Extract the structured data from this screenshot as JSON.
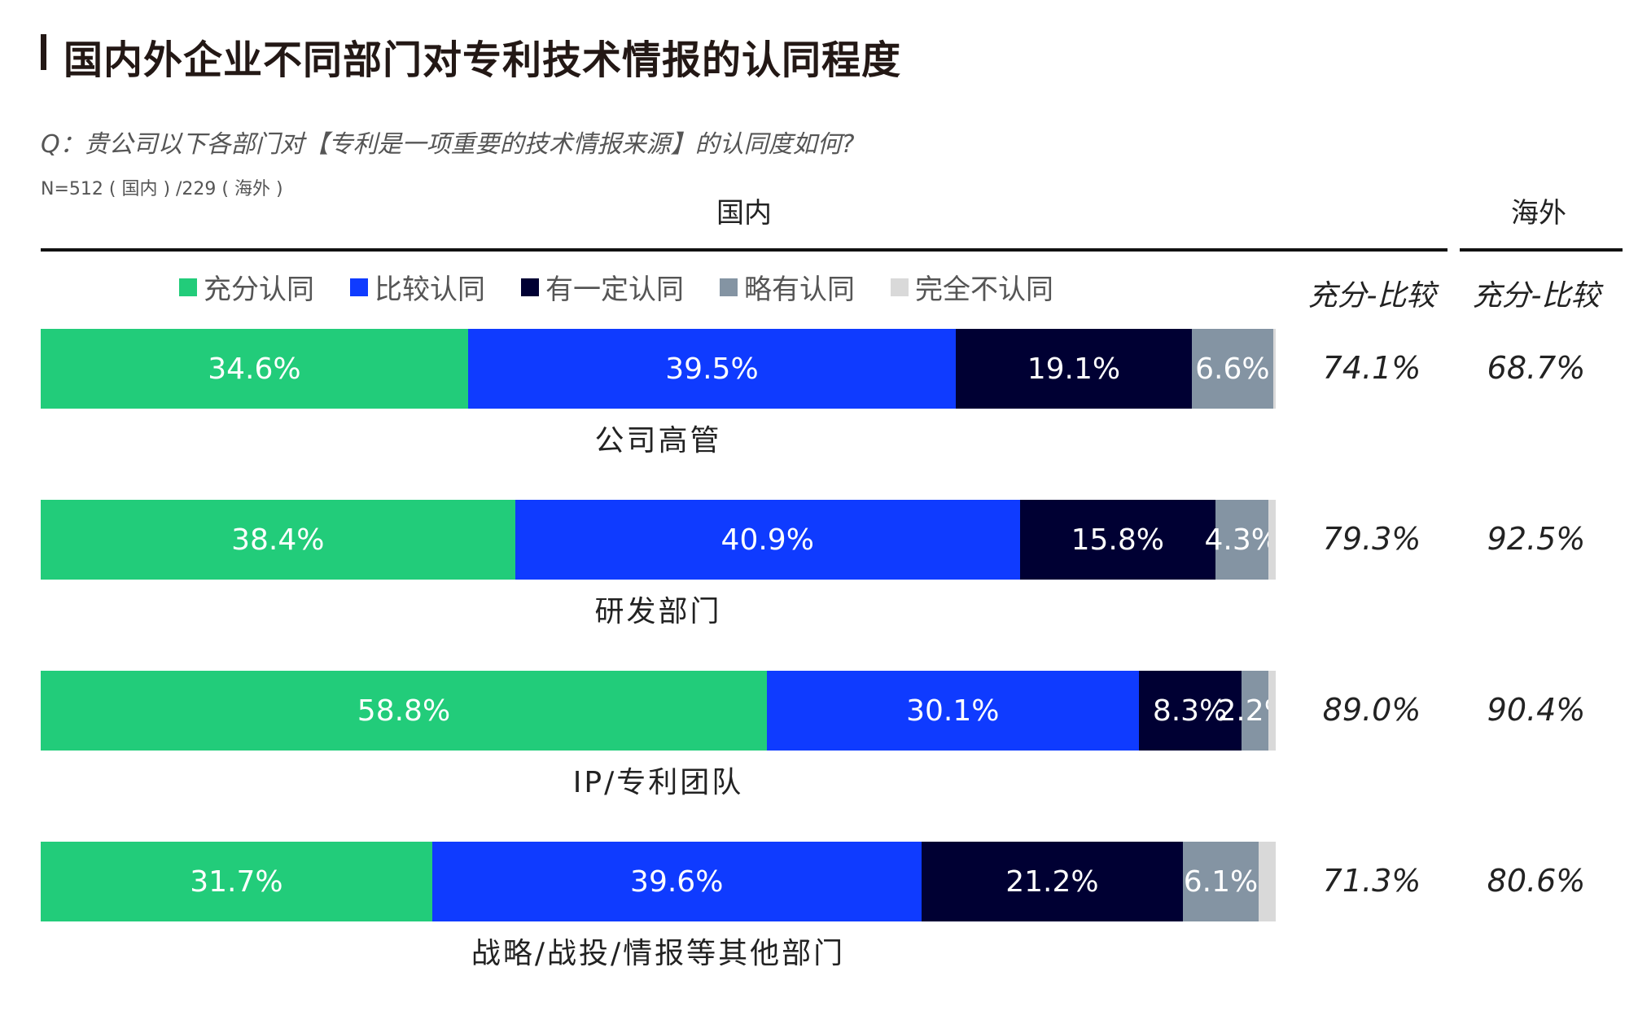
{
  "title": "国内外企业不同部门对专利技术情报的认同程度",
  "question": "Q：贵公司以下各部门对【专利是一项重要的技术情报来源】的认同度如何?",
  "sample_note": "N=512 ( 国内 ) /229 ( 海外 )",
  "column_headers": {
    "domestic": "国内",
    "overseas": "海外",
    "domestic_sum": "充分-比较",
    "overseas_sum": "充分-比较"
  },
  "chart_data": {
    "type": "bar",
    "orientation": "horizontal-stacked-100",
    "categories": [
      "公司高管",
      "研发部门",
      "IP/专利团队",
      "战略/战投/情报等其他部门"
    ],
    "series": [
      {
        "name": "充分认同",
        "color": "#22CC7A",
        "values": [
          34.6,
          38.4,
          58.8,
          31.7
        ],
        "labels": [
          "34.6%",
          "38.4%",
          "58.8%",
          "31.7%"
        ]
      },
      {
        "name": "比较认同",
        "color": "#0F3BFF",
        "values": [
          39.5,
          40.9,
          30.1,
          39.6
        ],
        "labels": [
          "39.5%",
          "40.9%",
          "30.1%",
          "39.6%"
        ]
      },
      {
        "name": "有一定认同",
        "color": "#000033",
        "values": [
          19.1,
          15.8,
          8.3,
          21.2
        ],
        "labels": [
          "19.1%",
          "15.8%",
          "8.3%",
          "21.2%"
        ]
      },
      {
        "name": "略有认同",
        "color": "#8494A3",
        "values": [
          6.6,
          4.3,
          2.2,
          6.1
        ],
        "labels": [
          "6.6%",
          "4.3%",
          "2.2%",
          "6.1%"
        ]
      },
      {
        "name": "完全不认同",
        "color": "#D9D9D9",
        "values": [
          0.2,
          0.6,
          0.6,
          1.4
        ],
        "labels": [
          "",
          "",
          "",
          ""
        ]
      }
    ],
    "domestic_sum": [
      "74.1%",
      "79.3%",
      "89.0%",
      "71.3%"
    ],
    "overseas_sum": [
      "68.7%",
      "92.5%",
      "90.4%",
      "80.6%"
    ],
    "xlim": [
      0,
      100
    ],
    "legend_position": "top"
  }
}
